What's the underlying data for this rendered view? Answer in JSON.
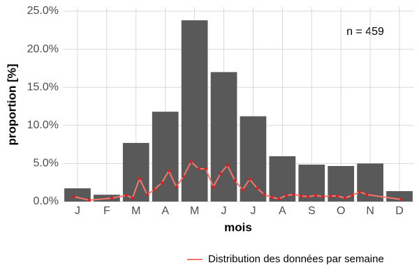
{
  "chart_data": {
    "type": "bar",
    "ylabel": "proportion [%]",
    "xlabel": "mois",
    "annotation": "n = 459",
    "categories": [
      "J",
      "F",
      "M",
      "A",
      "M",
      "J",
      "J",
      "A",
      "S",
      "O",
      "N",
      "D"
    ],
    "values": [
      1.74,
      0.9,
      7.7,
      11.8,
      23.8,
      17.0,
      11.2,
      5.95,
      4.85,
      4.67,
      5.0,
      1.37
    ],
    "color": "#595959",
    "xlim": [
      0.5,
      12.5
    ],
    "ylim": [
      0,
      25
    ],
    "yticks": [
      {
        "value": 0,
        "label": "0.0%"
      },
      {
        "value": 5,
        "label": "5.0%"
      },
      {
        "value": 10,
        "label": "10.0%"
      },
      {
        "value": 15,
        "label": "15.0%"
      },
      {
        "value": 20,
        "label": "20.0%"
      },
      {
        "value": 25,
        "label": "25.0%"
      }
    ],
    "grid": true,
    "legend": "bottom-right",
    "series": [
      {
        "name": "Distribution des données par semaine",
        "type": "line",
        "color": "#f8766d",
        "point_color": "#e41a1c",
        "x": [
          0.88,
          1.4,
          2.17,
          2.67,
          2.88,
          3.12,
          3.38,
          3.62,
          3.88,
          4.12,
          4.38,
          4.62,
          4.88,
          5.14,
          5.38,
          5.64,
          5.88,
          6.12,
          6.38,
          6.64,
          6.88,
          7.14,
          7.38,
          7.64,
          7.88,
          8.14,
          8.38,
          8.64,
          8.88,
          9.14,
          9.38,
          9.64,
          9.88,
          10.14,
          10.38,
          10.64,
          10.88,
          12.05
        ],
        "values": [
          0.64,
          0.18,
          0.46,
          0.82,
          0.46,
          3.02,
          0.92,
          1.56,
          2.47,
          4.03,
          1.92,
          3.3,
          5.22,
          4.3,
          4.3,
          1.92,
          3.66,
          4.76,
          2.75,
          1.56,
          2.93,
          1.74,
          0.92,
          0.55,
          0.37,
          0.82,
          0.92,
          0.73,
          0.64,
          0.82,
          0.64,
          0.73,
          0.73,
          0.46,
          0.82,
          1.28,
          0.92,
          0.27
        ]
      }
    ]
  }
}
